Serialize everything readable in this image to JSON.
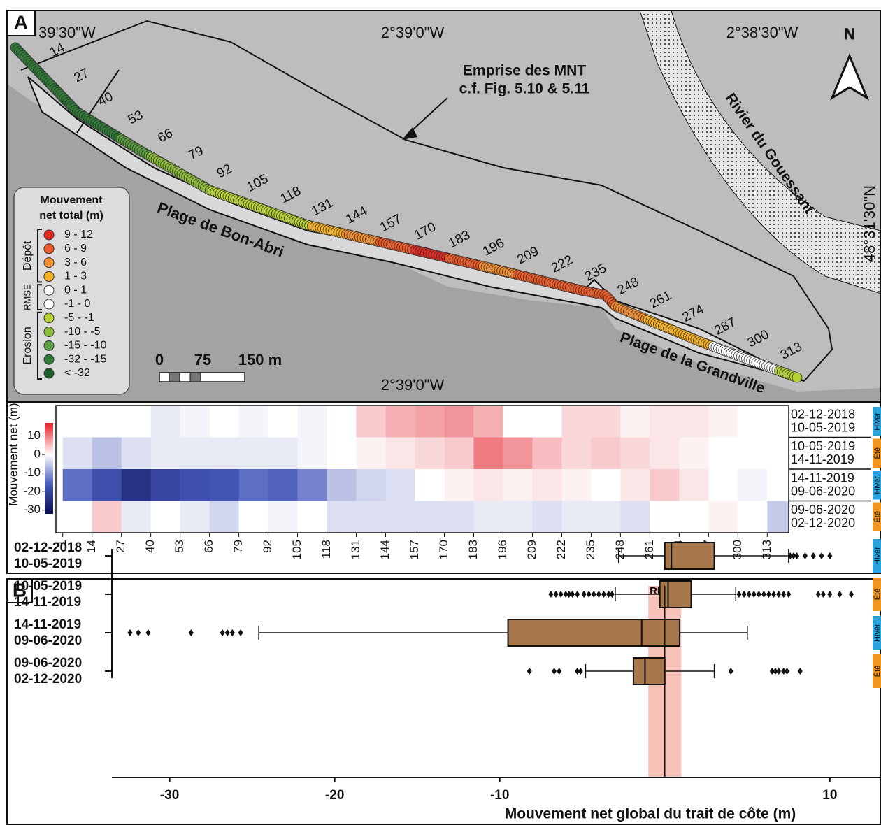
{
  "map": {
    "panel_label": "A",
    "longitudes_top": [
      "39'30\"W",
      "2°39'0\"W",
      "2°38'30\"W"
    ],
    "longitude_bottom": "2°39'0\"W",
    "latitude": "48°31'30\"N",
    "north": "N",
    "dem_extent": [
      "Emprise des MNT",
      "c.f. Fig. 5.10 & 5.11"
    ],
    "river": "Rivier du Gouessant",
    "beaches": [
      "Plage de Bon-Abri",
      "Plage de la Grandville"
    ],
    "scale": [
      "0",
      "75",
      "150 m"
    ],
    "legend": {
      "title": [
        "Mouvement",
        "net total (m)"
      ],
      "groups": [
        "Dépôt",
        "RMSE",
        "Erosion"
      ],
      "classes": [
        {
          "label": "9 - 12",
          "color": "#e3281f"
        },
        {
          "label": "6 - 9",
          "color": "#ee5a28"
        },
        {
          "label": "3 - 6",
          "color": "#f28c30"
        },
        {
          "label": "1 - 3",
          "color": "#f5b021"
        },
        {
          "label": "0 - 1",
          "color": "#ffffff"
        },
        {
          "label": "-1 - 0",
          "color": "#ffffff"
        },
        {
          "label": "-5 - -1",
          "color": "#b5d235"
        },
        {
          "label": "-10 - -5",
          "color": "#8cbd3a"
        },
        {
          "label": "-15 - -10",
          "color": "#5c9f40"
        },
        {
          "label": "-32 - -15",
          "color": "#2f7b36"
        },
        {
          "label": "< -32",
          "color": "#1a5c2a"
        }
      ]
    },
    "profile_labels": [
      14,
      27,
      40,
      53,
      66,
      79,
      92,
      105,
      118,
      131,
      144,
      157,
      170,
      183,
      196,
      209,
      222,
      235,
      248,
      261,
      274,
      287,
      300,
      313
    ],
    "dot_classes": [
      9,
      9,
      9,
      9,
      8,
      7,
      7,
      6,
      6,
      6,
      3,
      2,
      1,
      0,
      1,
      2,
      1,
      1,
      1,
      2,
      3,
      3,
      4,
      5,
      6
    ]
  },
  "chart_data": [
    {
      "type": "heatmap",
      "ylabel": "Mouvement net (m)",
      "xlim": [
        -2,
        322.5
      ],
      "xticks": [
        1,
        14,
        27,
        40,
        53,
        66,
        79,
        92,
        105,
        118,
        131,
        144,
        157,
        170,
        183,
        196,
        209,
        222,
        235,
        248,
        261,
        274,
        287,
        300,
        313
      ],
      "bins": [
        1,
        14,
        27,
        40,
        53,
        66,
        79,
        92,
        105,
        118,
        131,
        144,
        157,
        170,
        183,
        196,
        209,
        222,
        235,
        248,
        261,
        274,
        287,
        300,
        313,
        326
      ],
      "clim": [
        -32,
        17
      ],
      "cticks": [
        10,
        0,
        -10,
        -20,
        -30
      ],
      "season_colors": {
        "Hiver": "#27a4de",
        "Été": "#f0951d"
      },
      "rows": [
        {
          "label": [
            "02-12-2018",
            "10-05-2019"
          ],
          "season": "Hiver",
          "values": [
            0,
            0,
            0,
            -2,
            -1,
            0,
            -1,
            0,
            -1,
            0,
            4,
            6,
            7,
            8,
            6,
            0,
            0,
            3,
            3,
            1,
            2,
            2,
            1,
            0,
            0
          ]
        },
        {
          "label": [
            "10-05-2019",
            "14-11-2019"
          ],
          "season": "Été",
          "values": [
            -3,
            -6,
            -3,
            -2,
            -2,
            -2,
            -2,
            -2,
            -1,
            0,
            1,
            2,
            3,
            4,
            10,
            8,
            5,
            3,
            4,
            3,
            2,
            1,
            0,
            0,
            0
          ]
        },
        {
          "label": [
            "14-11-2019",
            "09-06-2020"
          ],
          "season": "Hiver",
          "values": [
            -14,
            -18,
            -24,
            -20,
            -18,
            -17,
            -14,
            -15,
            -12,
            -6,
            -4,
            -3,
            0,
            1,
            2,
            1,
            2,
            1,
            0,
            2,
            4,
            2,
            0,
            -1,
            0
          ]
        },
        {
          "label": [
            "09-06-2020",
            "02-12-2020"
          ],
          "season": "Été",
          "values": [
            0,
            4,
            -2,
            0,
            -2,
            -4,
            0,
            -1,
            0,
            -3,
            -3,
            -3,
            -3,
            -3,
            -2,
            -2,
            -3,
            -2,
            -2,
            -3,
            0,
            0,
            1,
            0,
            -5
          ]
        }
      ]
    },
    {
      "type": "box",
      "panel_label": "B",
      "xlabel": "Mouvement net global du trait de côte (m)",
      "xlim": [
        -33.5,
        13.1
      ],
      "xticks": [
        -30,
        -20,
        -10,
        10
      ],
      "rmse_band": [
        -1,
        1
      ],
      "rmse_label": "RMSE",
      "reference_line": 0,
      "color": "#a6784c",
      "season_colors": {
        "Hiver": "#27a4de",
        "Été": "#f0951d"
      },
      "categories": [
        [
          "02-12-2018",
          "10-05-2019"
        ],
        [
          "10-05-2019",
          "14-11-2019"
        ],
        [
          "14-11-2019",
          "09-06-2020"
        ],
        [
          "09-06-2020",
          "02-12-2020"
        ]
      ],
      "seasons": [
        "Hiver",
        "Été",
        "Hiver",
        "Été"
      ],
      "boxes": [
        {
          "whislo": -2.8,
          "q1": 0,
          "med": 0.4,
          "q3": 3,
          "whishi": 7.5,
          "fliers": [
            7.6,
            7.8,
            8,
            8.5,
            9,
            9.5,
            10
          ]
        },
        {
          "whislo": -3,
          "q1": -0.3,
          "med": 0.2,
          "q3": 1.6,
          "whishi": 4.3,
          "fliers": [
            -6.9,
            -6.6,
            -6.3,
            -6,
            -5.8,
            -5.6,
            -5.3,
            -4.9,
            -4.6,
            -4.3,
            -4,
            -3.7,
            -3.4,
            -3.2,
            4.5,
            4.8,
            5.1,
            5.4,
            5.7,
            6,
            6.3,
            6.6,
            6.9,
            7.2,
            7.5,
            9.3,
            9.6,
            10,
            10.6,
            11.3
          ]
        },
        {
          "whislo": -24.6,
          "q1": -9.5,
          "med": -1.4,
          "q3": 0.9,
          "whishi": 5,
          "fliers": [
            -32.4,
            -31.9,
            -31.3,
            -28.7,
            -26.8,
            -26.5,
            -26.2,
            -25.7
          ]
        },
        {
          "whislo": -4.8,
          "q1": -1.9,
          "med": -1.2,
          "q3": 0,
          "whishi": 3,
          "fliers": [
            -8.2,
            -6.7,
            -6.4,
            -5.3,
            -5.1,
            4,
            6.5,
            6.7,
            6.9,
            7.2,
            7.4,
            8.2
          ]
        }
      ]
    }
  ]
}
